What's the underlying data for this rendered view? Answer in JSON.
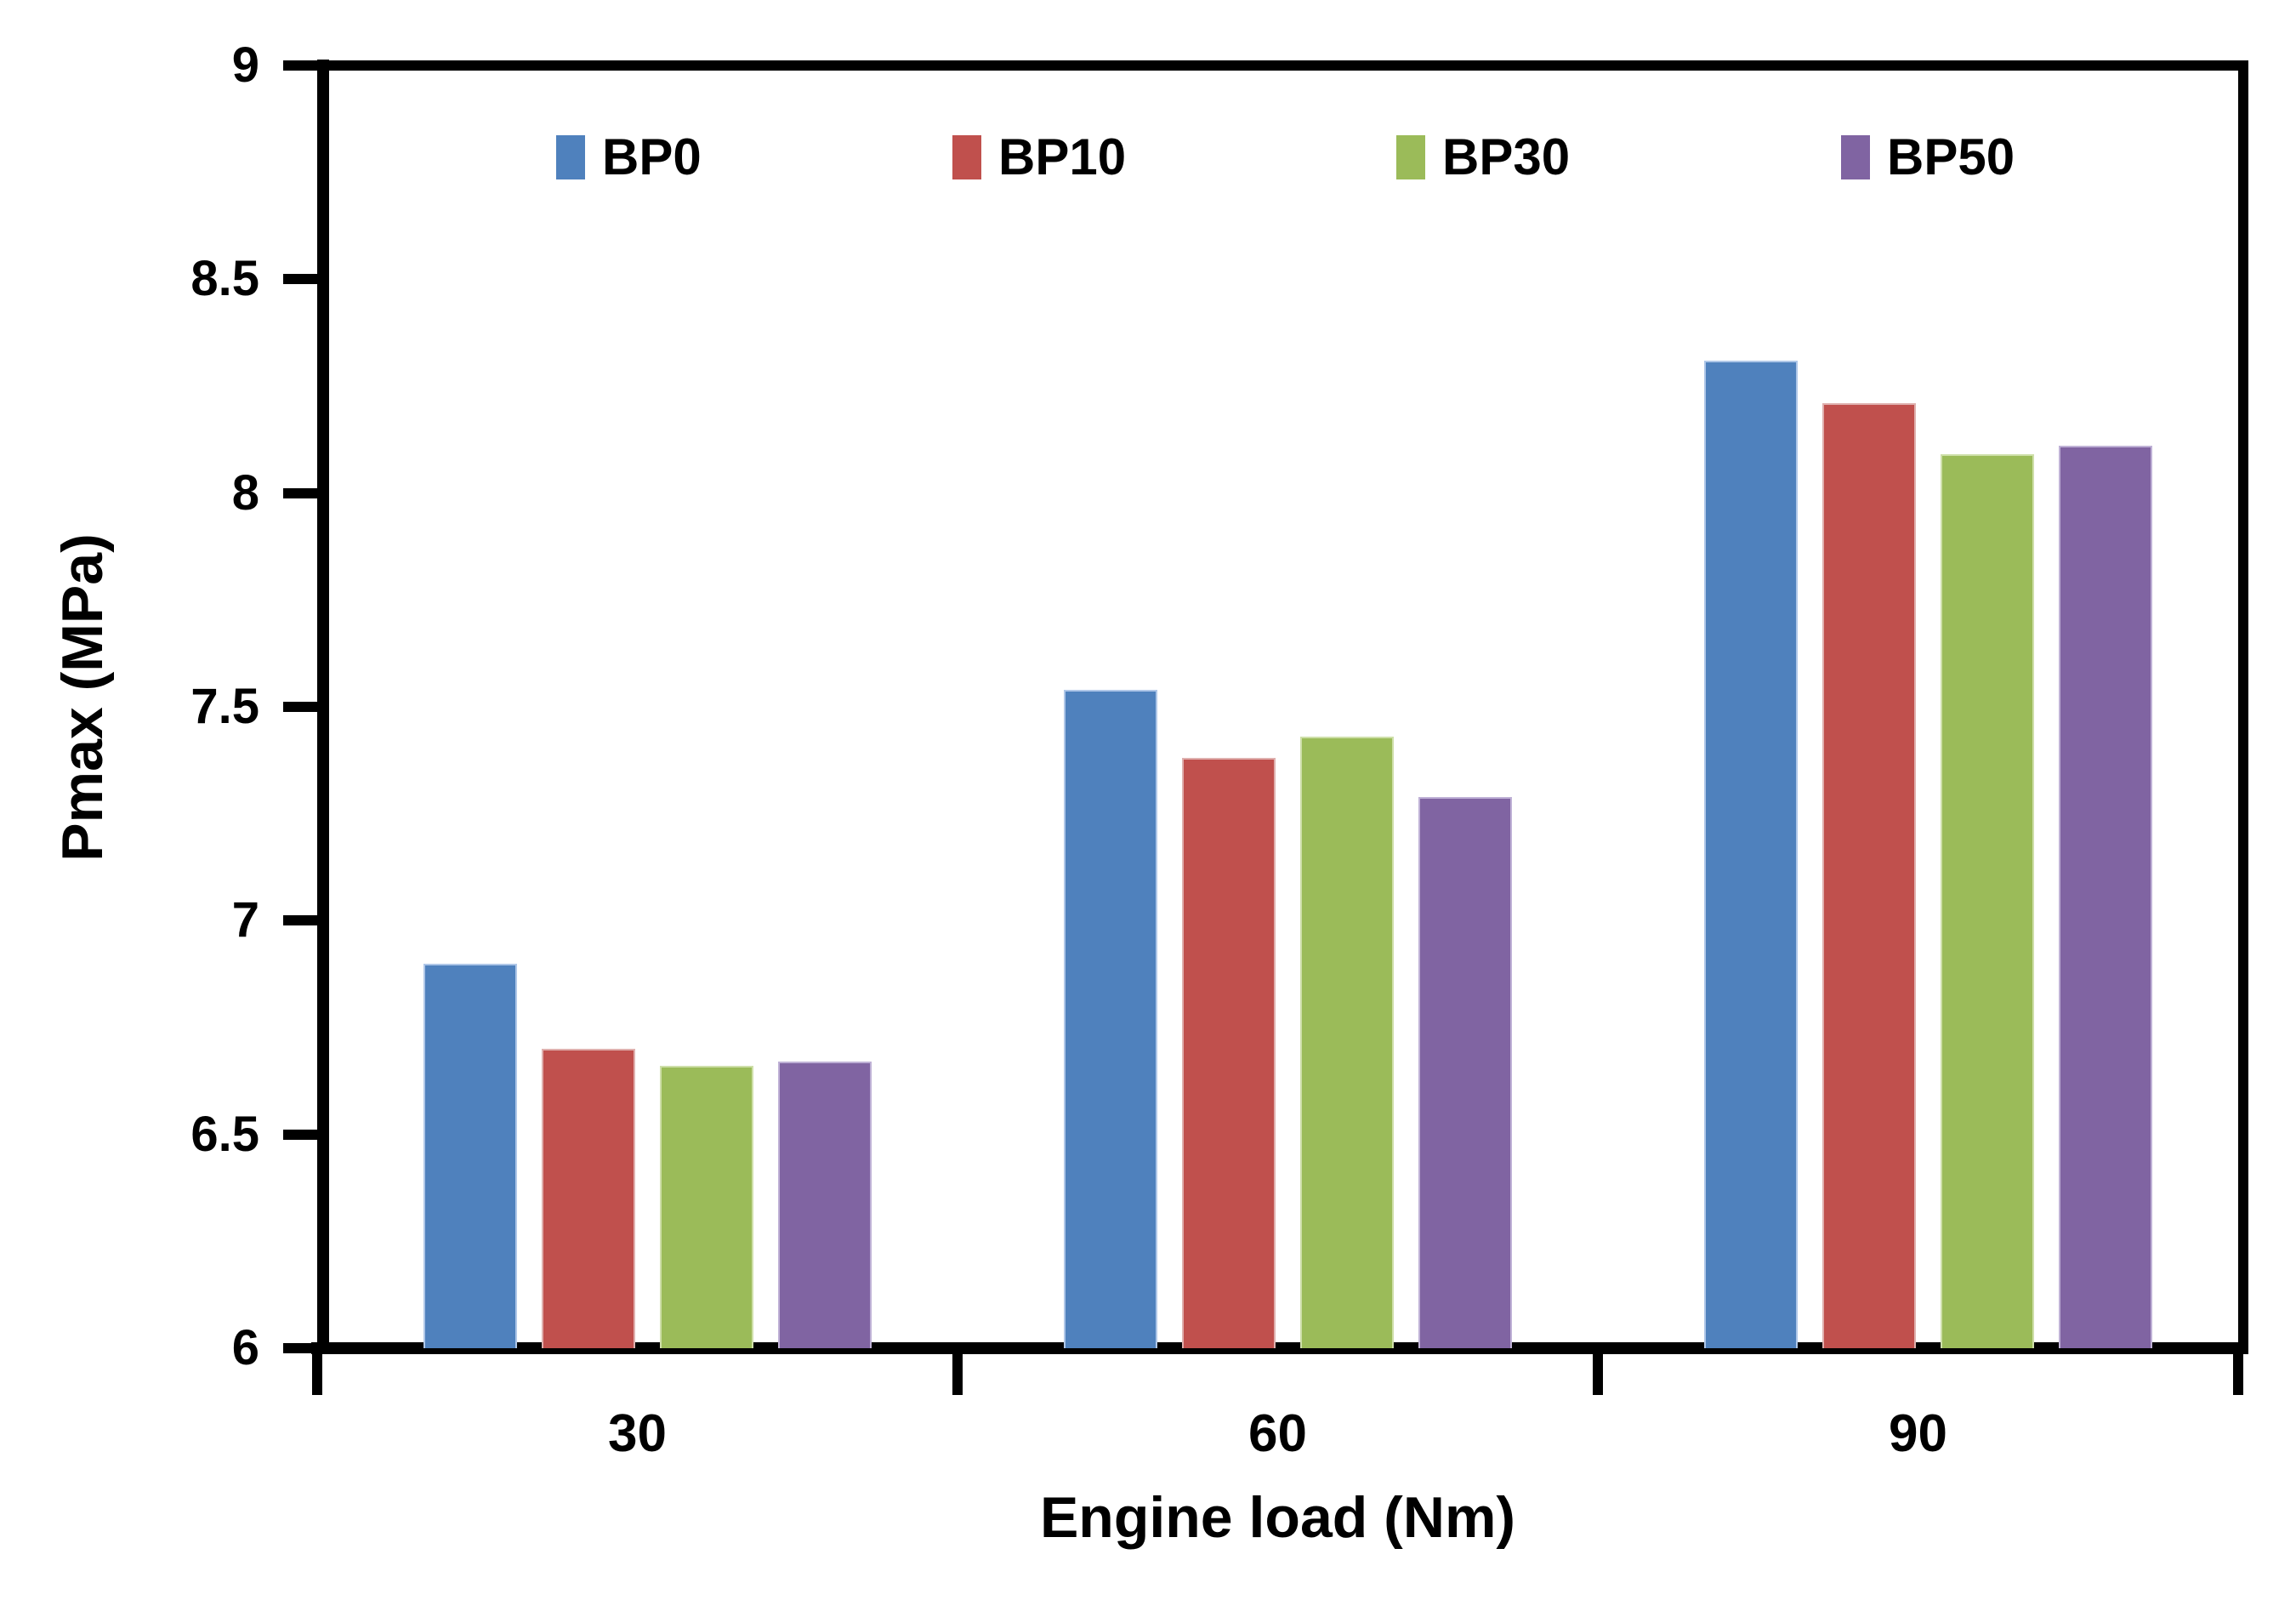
{
  "figure": {
    "y_axis": {
      "title": "Pmax (MPa)",
      "tick_labels": [
        "9",
        "8.5",
        "8",
        "7.5",
        "7",
        "6.5",
        "6"
      ]
    },
    "x_axis": {
      "title": "Engine load (Nm)",
      "tick_labels": [
        "30",
        "60",
        "90"
      ]
    },
    "legend": {
      "items": [
        "BP0",
        "BP10",
        "BP30",
        "BP50"
      ]
    }
  },
  "chart_data": {
    "type": "bar",
    "title": "",
    "categories": [
      "30",
      "60",
      "90"
    ],
    "series": [
      {
        "name": "BP0",
        "color": "#4F81BD",
        "edge_color": "#AFC7E8",
        "values": [
          6.9,
          7.54,
          8.31
        ]
      },
      {
        "name": "BP10",
        "color": "#C0504D",
        "edge_color": "#DFB0AE",
        "values": [
          6.7,
          7.38,
          8.21
        ]
      },
      {
        "name": "BP30",
        "color": "#9BBB59",
        "edge_color": "#CEDFA9",
        "values": [
          6.66,
          7.43,
          8.09
        ]
      },
      {
        "name": "BP50",
        "color": "#8064A2",
        "edge_color": "#BFB1D6",
        "values": [
          6.67,
          7.29,
          8.11
        ]
      }
    ],
    "xlabel": "Engine load (Nm)",
    "ylabel": "Pmax (MPa)",
    "ylim": [
      6,
      9
    ],
    "ytick_step": 0.5,
    "axis_color": "#000000",
    "grid": false,
    "legend_position": "top-inside"
  }
}
